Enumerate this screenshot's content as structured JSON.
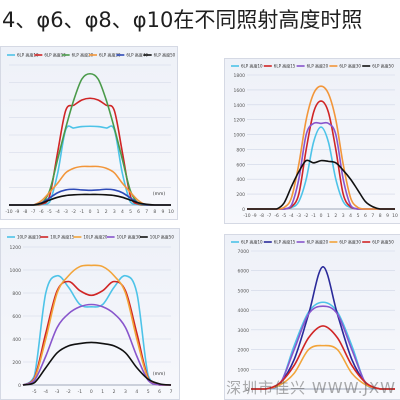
{
  "page": {
    "title": "4、φ6、φ8、φ10在不同照射高度时照"
  },
  "watermark": {
    "url": "WWW.JXW",
    "company": "深圳市佳兴"
  },
  "chart_data": [
    {
      "type": "line",
      "legend": [
        "6LP 高度10",
        "6LP 高度15",
        "6LP 高度20",
        "6LP 高度30",
        "6LP 高度40",
        "6LP 高度50"
      ],
      "x": [
        -10,
        -9,
        -8,
        -7,
        -6,
        -5,
        -4,
        -3,
        -2,
        -1,
        0,
        1,
        2,
        3,
        4,
        5,
        6,
        7,
        8,
        9,
        10
      ],
      "x_ticks": [
        "-10",
        "-9",
        "-8",
        "-7",
        "-6",
        "-5",
        "-4",
        "-3",
        "-2",
        "-1",
        "0",
        "1",
        "2",
        "3",
        "4",
        "5",
        "6",
        "7",
        "8",
        "9",
        "10"
      ],
      "x_unit": "(mm)",
      "ylim": [
        0,
        4000
      ],
      "series": [
        {
          "name": "6LP 高度10",
          "color": "#4dc3e8",
          "values": [
            0,
            0,
            0,
            0,
            10,
            80,
            900,
            2150,
            2200,
            2240,
            2250,
            2240,
            2200,
            2150,
            900,
            80,
            10,
            0,
            0,
            0,
            0
          ]
        },
        {
          "name": "6LP 高度15",
          "color": "#d02525",
          "values": [
            0,
            0,
            0,
            0,
            20,
            250,
            1500,
            2700,
            2850,
            3000,
            3050,
            3000,
            2850,
            2700,
            1500,
            250,
            20,
            0,
            0,
            0,
            0
          ]
        },
        {
          "name": "6LP 高度20",
          "color": "#4a9a4a",
          "values": [
            0,
            0,
            0,
            0,
            40,
            400,
            1300,
            2200,
            3000,
            3600,
            3750,
            3600,
            3000,
            2200,
            1300,
            400,
            40,
            0,
            0,
            0,
            0
          ]
        },
        {
          "name": "6LP 高度30",
          "color": "#f2963a",
          "values": [
            0,
            0,
            0,
            0,
            120,
            360,
            620,
            920,
            1050,
            1100,
            1100,
            1100,
            1050,
            920,
            620,
            360,
            120,
            0,
            0,
            0,
            0
          ]
        },
        {
          "name": "6LP 高度40",
          "color": "#2e4bb8",
          "values": [
            0,
            0,
            0,
            0,
            60,
            200,
            350,
            430,
            450,
            430,
            420,
            430,
            450,
            430,
            350,
            200,
            60,
            0,
            0,
            0,
            0
          ]
        },
        {
          "name": "6LP 高度50",
          "color": "#111111",
          "values": [
            0,
            0,
            0,
            0,
            50,
            140,
            220,
            270,
            290,
            300,
            300,
            300,
            290,
            270,
            220,
            140,
            60,
            20,
            0,
            0,
            0
          ]
        }
      ]
    },
    {
      "type": "line",
      "legend": [
        "6LP 高度10",
        "6LP 高度15",
        "6LP 高度20",
        "6LP 高度30",
        "6LP 高度50"
      ],
      "x": [
        -10,
        -9,
        -8,
        -7,
        -6,
        -5,
        -4,
        -3,
        -2,
        -1,
        0,
        1,
        2,
        3,
        4,
        5,
        6,
        7,
        8,
        9,
        10
      ],
      "x_ticks": [
        "-10",
        "-9",
        "-8",
        "-7",
        "-6",
        "-5",
        "-4",
        "-3",
        "-2",
        "-1",
        "0",
        "1",
        "2",
        "3",
        "4",
        "5",
        "6",
        "7",
        "8",
        "9",
        "10"
      ],
      "ylim": [
        0,
        1800
      ],
      "y_ticks": [
        "0",
        "200",
        "400",
        "600",
        "800",
        "1000",
        "1200",
        "1400",
        "1600",
        "1800"
      ],
      "series": [
        {
          "name": "6LP 高度10",
          "color": "#4dc3e8",
          "values": [
            0,
            0,
            0,
            0,
            0,
            0,
            20,
            100,
            400,
            900,
            1100,
            900,
            400,
            100,
            20,
            0,
            0,
            0,
            0,
            0,
            0
          ]
        },
        {
          "name": "6LP 高度15",
          "color": "#d02525",
          "values": [
            0,
            0,
            0,
            0,
            0,
            0,
            30,
            200,
            800,
            1300,
            1450,
            1300,
            800,
            200,
            30,
            0,
            0,
            0,
            0,
            0,
            0
          ]
        },
        {
          "name": "6LP 高度20",
          "color": "#8855cc",
          "values": [
            0,
            0,
            0,
            0,
            0,
            0,
            50,
            400,
            1000,
            1150,
            1150,
            1150,
            1000,
            400,
            50,
            0,
            0,
            0,
            0,
            0,
            0
          ]
        },
        {
          "name": "6LP 高度30",
          "color": "#f2963a",
          "values": [
            0,
            0,
            0,
            0,
            0,
            20,
            150,
            600,
            1200,
            1550,
            1650,
            1550,
            1200,
            600,
            150,
            20,
            0,
            0,
            0,
            0,
            0
          ]
        },
        {
          "name": "6LP 高度50",
          "color": "#111111",
          "values": [
            0,
            0,
            0,
            0,
            0,
            80,
            300,
            500,
            650,
            620,
            650,
            640,
            620,
            520,
            400,
            250,
            100,
            30,
            0,
            0,
            0
          ]
        }
      ]
    },
    {
      "type": "line",
      "legend": [
        "10LP 高度10",
        "10LP 高度15",
        "10LP 高度20",
        "10LP 高度30",
        "10LP 高度50"
      ],
      "x": [
        -6,
        -5,
        -4,
        -3,
        -2,
        -1,
        0,
        1,
        2,
        3,
        4,
        5,
        6,
        7
      ],
      "x_ticks": [
        "",
        "-5",
        "-4",
        "-3",
        "-2",
        "-1",
        "0",
        "1",
        "2",
        "3",
        "4",
        "5",
        "6",
        "7"
      ],
      "x_unit": "(mm)",
      "ylim": [
        0,
        1200
      ],
      "y_ticks": [
        "0",
        "200",
        "400",
        "600",
        "800",
        "1000",
        "1200"
      ],
      "series": [
        {
          "name": "10LP 高度10",
          "color": "#4dc3e8",
          "values": [
            0,
            80,
            800,
            950,
            850,
            700,
            680,
            700,
            850,
            950,
            800,
            80,
            0,
            0
          ]
        },
        {
          "name": "10LP 高度15",
          "color": "#d02525",
          "values": [
            0,
            60,
            450,
            820,
            900,
            820,
            780,
            820,
            900,
            820,
            450,
            60,
            0,
            0
          ]
        },
        {
          "name": "10LP 高度20",
          "color": "#f2a43a",
          "values": [
            0,
            50,
            400,
            800,
            950,
            1030,
            1040,
            1030,
            950,
            800,
            400,
            50,
            0,
            0
          ]
        },
        {
          "name": "10LP 高度30",
          "color": "#8855cc",
          "values": [
            0,
            40,
            250,
            500,
            620,
            680,
            700,
            680,
            620,
            500,
            250,
            40,
            0,
            0
          ]
        },
        {
          "name": "10LP 高度50",
          "color": "#111111",
          "values": [
            0,
            20,
            150,
            280,
            340,
            360,
            370,
            360,
            340,
            280,
            150,
            50,
            10,
            0
          ]
        }
      ]
    },
    {
      "type": "line",
      "legend": [
        "6LP 高度10",
        "6LP 高度15",
        "6LP 高度20",
        "6LP 高度30",
        "6LP 高度50"
      ],
      "x": [
        -5,
        -4,
        -3,
        -2,
        -1,
        0,
        1,
        2,
        3,
        4,
        5
      ],
      "ylim": [
        0,
        7000
      ],
      "y_ticks": [
        "0",
        "1000",
        "2000",
        "3000",
        "4000",
        "5000",
        "6000",
        "7000"
      ],
      "series": [
        {
          "name": "6LP 高度10",
          "color": "#4dc3e8",
          "values": [
            0,
            0,
            200,
            2200,
            3900,
            4400,
            3900,
            2200,
            200,
            0,
            0
          ]
        },
        {
          "name": "6LP 高度15",
          "color": "#2a2a9a",
          "values": [
            0,
            0,
            300,
            1500,
            3800,
            6200,
            3800,
            1500,
            300,
            0,
            0
          ]
        },
        {
          "name": "6LP 高度20",
          "color": "#8855cc",
          "values": [
            0,
            0,
            250,
            2000,
            3800,
            4200,
            3800,
            2000,
            250,
            0,
            0
          ]
        },
        {
          "name": "6LP 高度30",
          "color": "#f2a43a",
          "values": [
            0,
            0,
            200,
            800,
            2000,
            2200,
            2000,
            800,
            200,
            0,
            0
          ]
        },
        {
          "name": "6LP 高度50",
          "color": "#d02525",
          "values": [
            0,
            0,
            300,
            1200,
            2600,
            3200,
            2600,
            1200,
            300,
            0,
            0
          ]
        }
      ]
    }
  ]
}
